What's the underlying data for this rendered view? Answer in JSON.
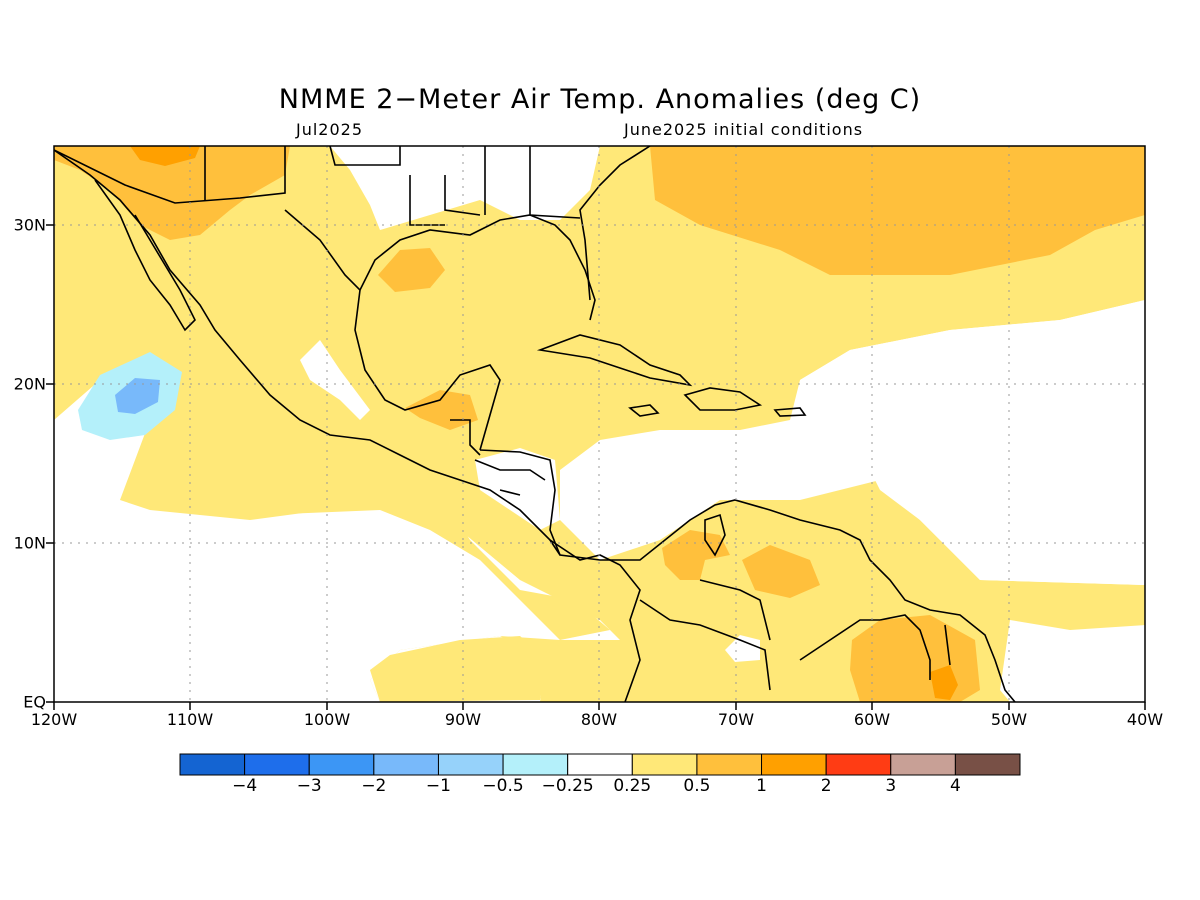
{
  "title": "NMME 2−Meter Air Temp. Anomalies (deg C)",
  "subtitle_left": "Jul2025",
  "subtitle_right": "June2025 initial conditions",
  "lat_labels": [
    "30N",
    "20N",
    "10N",
    "EQ"
  ],
  "lon_labels": [
    "120W",
    "110W",
    "100W",
    "90W",
    "80W",
    "70W",
    "60W",
    "50W",
    "40W"
  ],
  "map_extent": {
    "lon": [
      -120,
      -40
    ],
    "lat": [
      0,
      35
    ]
  },
  "colorbar": {
    "colors": [
      "#1464d2",
      "#1e6eeb",
      "#3c96f5",
      "#78b9fa",
      "#96d2fa",
      "#b4f0fa",
      "#ffffff",
      "#ffe878",
      "#ffc03c",
      "#ffa000",
      "#ff3c14",
      "#c8a096",
      "#785046"
    ],
    "labels": [
      "−4",
      "−3",
      "−2",
      "−1",
      "−0.5",
      "−0.25",
      "0.25",
      "0.5",
      "1",
      "2",
      "3",
      "4"
    ]
  },
  "colors": {
    "light_yellow": "#ffe878",
    "light_orange": "#ffc03c",
    "orange": "#ffa000",
    "light_blue": "#b4f0fa",
    "blue": "#78b9fa",
    "white": "#ffffff"
  }
}
